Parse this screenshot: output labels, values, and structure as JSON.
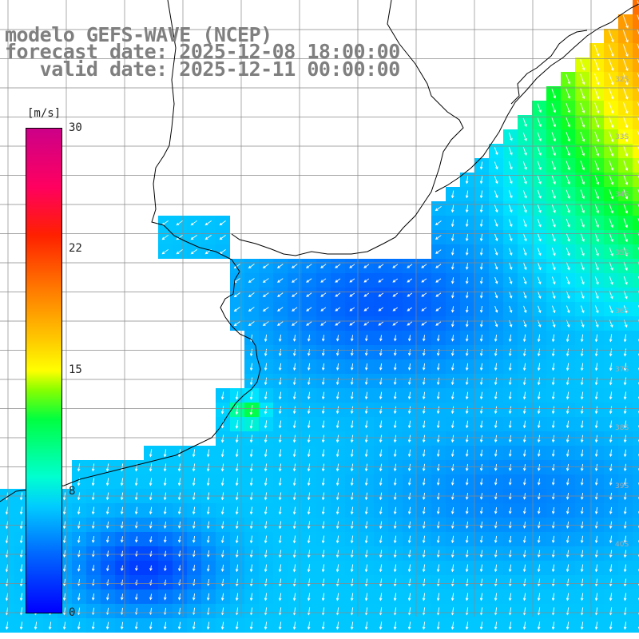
{
  "title": {
    "line1": "modelo GEFS-WAVE (NCEP)",
    "line2": "forecast date: 2025-12-08 18:00:00",
    "line3": "   valid date: 2025-12-11 00:00:00"
  },
  "colorbar": {
    "unit": "[m/s]",
    "ticks": [
      {
        "label": "30",
        "value": 30
      },
      {
        "label": "22",
        "value": 22
      },
      {
        "label": "15",
        "value": 15
      },
      {
        "label": "8",
        "value": 8
      },
      {
        "label": "0",
        "value": 0
      }
    ],
    "range": [
      0,
      30
    ]
  },
  "map": {
    "lat_labels": [
      "32S",
      "33S",
      "34S",
      "35S",
      "36S",
      "37S",
      "38S",
      "39S",
      "40S"
    ],
    "colors": {
      "land": "#ffffff",
      "coast": "#000000",
      "grid": "#888888",
      "arrow": "#ffffff"
    }
  }
}
